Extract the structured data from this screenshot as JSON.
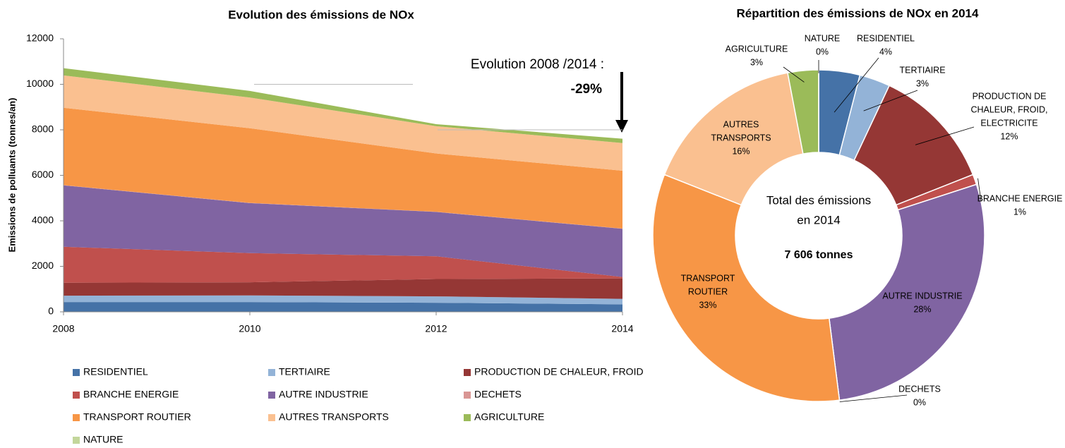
{
  "chart_data": [
    {
      "type": "area",
      "title": "Evolution des émissions de NOx",
      "y_label": "Emissions de polluants (tonnes/an)",
      "x": [
        2008,
        2010,
        2012,
        2014
      ],
      "xlim": [
        2008,
        2014
      ],
      "xticks": [
        2008,
        2010,
        2012,
        2014
      ],
      "ylim": [
        0,
        12000
      ],
      "yticks": [
        0,
        2000,
        4000,
        6000,
        8000,
        10000,
        12000
      ],
      "annotations": [
        "Evolution 2008 /2014 :",
        "-29%"
      ],
      "series": [
        {
          "name": "RESIDENTIEL",
          "color": "#4572a7",
          "values": [
            430,
            430,
            400,
            330
          ]
        },
        {
          "name": "TERTIAIRE",
          "color": "#93b3d7",
          "values": [
            280,
            290,
            280,
            240
          ]
        },
        {
          "name": "PRODUCTION DE CHALEUR, FROID",
          "color": "#953735",
          "values": [
            570,
            580,
            760,
            900
          ]
        },
        {
          "name": "BRANCHE ENERGIE",
          "color": "#c0504d",
          "values": [
            1580,
            1280,
            1000,
            60
          ]
        },
        {
          "name": "AUTRE INDUSTRIE",
          "color": "#8064a2",
          "values": [
            2700,
            2200,
            1950,
            2120
          ]
        },
        {
          "name": "DECHETS",
          "color": "#d99694",
          "values": [
            10,
            10,
            10,
            10
          ]
        },
        {
          "name": "TRANSPORT ROUTIER",
          "color": "#f79646",
          "values": [
            3400,
            3280,
            2560,
            2540
          ]
        },
        {
          "name": "AUTRES TRANSPORTS",
          "color": "#fac090",
          "values": [
            1420,
            1350,
            1200,
            1220
          ]
        },
        {
          "name": "AGRICULTURE",
          "color": "#9bbb59",
          "values": [
            320,
            290,
            90,
            190
          ]
        },
        {
          "name": "NATURE",
          "color": "#c3d69b",
          "values": [
            0,
            0,
            0,
            0
          ]
        }
      ]
    },
    {
      "type": "donut",
      "title": "Répartition des émissions de NOx en 2014",
      "center_text": [
        "Total des émissions",
        "en 2014",
        "7 606 tonnes"
      ],
      "labels": [
        [
          "RESIDENTIEL"
        ],
        [
          "TERTIAIRE"
        ],
        [
          "PRODUCTION DE",
          "CHALEUR, FROID,",
          "ELECTRICITE"
        ],
        [
          "BRANCHE ENERGIE"
        ],
        [
          "AUTRE INDUSTRIE"
        ],
        [
          "DECHETS"
        ],
        [
          "TRANSPORT",
          "ROUTIER"
        ],
        [
          "AUTRES",
          "TRANSPORTS"
        ],
        [
          "AGRICULTURE"
        ],
        [
          "NATURE"
        ]
      ],
      "values": [
        4,
        3,
        12,
        1,
        28,
        0,
        33,
        16,
        3,
        0
      ],
      "value_labels": [
        "4%",
        "3%",
        "12%",
        "1%",
        "28%",
        "0%",
        "33%",
        "16%",
        "3%",
        "0%"
      ],
      "colors": [
        "#4572a7",
        "#93b3d7",
        "#953735",
        "#c0504d",
        "#8064a2",
        "#d99694",
        "#f79646",
        "#fac090",
        "#9bbb59",
        "#c3d69b"
      ]
    }
  ]
}
